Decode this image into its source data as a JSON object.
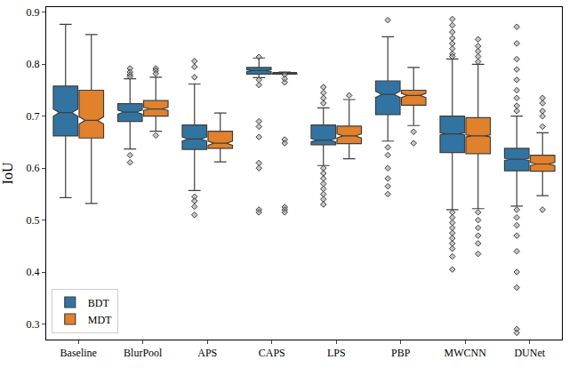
{
  "chart_data": {
    "type": "box",
    "y_label": "IoU",
    "categories": [
      "Baseline",
      "BlurPool",
      "APS",
      "CAPS",
      "LPS",
      "PBP",
      "MWCNN",
      "DUNet"
    ],
    "ylim": [
      0.27,
      0.91
    ],
    "yticks": [
      0.3,
      0.4,
      0.5,
      0.6,
      0.7,
      0.8,
      0.9
    ],
    "grid": false,
    "legend": "lower left",
    "marker": "diamond",
    "series": [
      {
        "name": "BDT",
        "color": "#3274a1",
        "q1": [
          0.662,
          0.69,
          0.636,
          0.781,
          0.645,
          0.703,
          0.63,
          0.595
        ],
        "median": [
          0.707,
          0.708,
          0.656,
          0.788,
          0.654,
          0.742,
          0.666,
          0.617
        ],
        "q3": [
          0.758,
          0.724,
          0.683,
          0.794,
          0.683,
          0.768,
          0.7,
          0.638
        ],
        "lowerfence": [
          0.543,
          0.637,
          0.557,
          0.774,
          0.605,
          0.652,
          0.52,
          0.527
        ],
        "upperfence": [
          0.877,
          0.772,
          0.762,
          0.812,
          0.716,
          0.853,
          0.81,
          0.7
        ],
        "notchspan": [
          0.007,
          0.004,
          0.004,
          0.002,
          0.003,
          0.006,
          0.002,
          0.002
        ],
        "outliers": [
          [],
          [
            0.792,
            0.785,
            0.78,
            0.776,
            0.625,
            0.611
          ],
          [
            0.806,
            0.795,
            0.775,
            0.545,
            0.537,
            0.526,
            0.51
          ],
          [
            0.814,
            0.77,
            0.76,
            0.69,
            0.68,
            0.66,
            0.61,
            0.6,
            0.52,
            0.515
          ],
          [
            0.756,
            0.745,
            0.735,
            0.725,
            0.6,
            0.59,
            0.58,
            0.57,
            0.56,
            0.55,
            0.54,
            0.53
          ],
          [
            0.885,
            0.64,
            0.625,
            0.6,
            0.58,
            0.565,
            0.55
          ],
          [
            0.887,
            0.875,
            0.862,
            0.85,
            0.84,
            0.83,
            0.82,
            0.815,
            0.515,
            0.505,
            0.495,
            0.485,
            0.475,
            0.465,
            0.455,
            0.445,
            0.43,
            0.405
          ],
          [
            0.872,
            0.84,
            0.81,
            0.79,
            0.77,
            0.75,
            0.735,
            0.72,
            0.71,
            0.52,
            0.505,
            0.49,
            0.47,
            0.44,
            0.4,
            0.37,
            0.29,
            0.283
          ]
        ]
      },
      {
        "name": "MDT",
        "color": "#e1812c",
        "q1": [
          0.658,
          0.7,
          0.638,
          0.781,
          0.647,
          0.721,
          0.628,
          0.594
        ],
        "median": [
          0.692,
          0.714,
          0.648,
          0.783,
          0.662,
          0.74,
          0.662,
          0.608
        ],
        "q3": [
          0.75,
          0.73,
          0.671,
          0.784,
          0.681,
          0.75,
          0.697,
          0.625
        ],
        "lowerfence": [
          0.532,
          0.671,
          0.612,
          0.781,
          0.618,
          0.682,
          0.522,
          0.547
        ],
        "upperfence": [
          0.857,
          0.775,
          0.706,
          0.785,
          0.732,
          0.794,
          0.8,
          0.668
        ],
        "notchspan": [
          0.007,
          0.003,
          0.004,
          0.001,
          0.004,
          0.004,
          0.002,
          0.003
        ],
        "outliers": [
          [],
          [
            0.792,
            0.788,
            0.782,
            0.663
          ],
          [],
          [
            0.78,
            0.772,
            0.765,
            0.655,
            0.648,
            0.525,
            0.52,
            0.515
          ],
          [
            0.74
          ],
          [
            0.67,
            0.648
          ],
          [
            0.848,
            0.835,
            0.825,
            0.815,
            0.805,
            0.515,
            0.5,
            0.485,
            0.47,
            0.455,
            0.435
          ],
          [
            0.735,
            0.725,
            0.71,
            0.7,
            0.68,
            0.52
          ]
        ]
      }
    ]
  }
}
